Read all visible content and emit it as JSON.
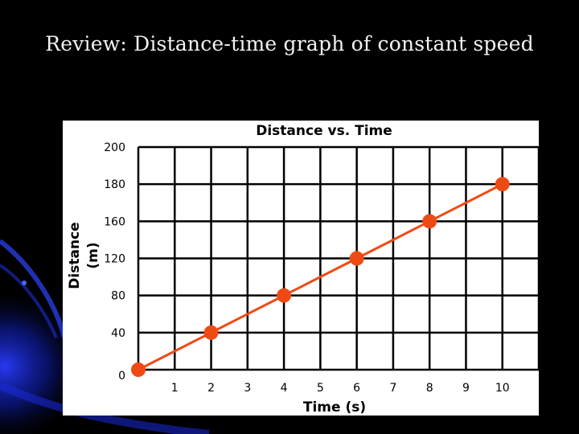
{
  "slide": {
    "title": "Review: Distance-time graph of constant speed",
    "background_color": "#000000",
    "accent_color": "#1a2fd6"
  },
  "chart_data": {
    "type": "line",
    "title": "Distance vs. Time",
    "xlabel": "Time (s)",
    "ylabel_line1": "Distance",
    "ylabel_line2": "(m)",
    "x_ticks": [
      "1",
      "2",
      "3",
      "4",
      "5",
      "6",
      "7",
      "8",
      "9",
      "10"
    ],
    "y_ticks": [
      "0",
      "40",
      "80",
      "120",
      "160",
      "180",
      "200"
    ],
    "grid": true,
    "xlim": [
      0,
      11
    ],
    "series": [
      {
        "color": "#f04a14",
        "marker": "circle",
        "points": [
          {
            "x": 0,
            "y": 0
          },
          {
            "x": 2,
            "y": 40
          },
          {
            "x": 4,
            "y": 80
          },
          {
            "x": 6,
            "y": 120
          },
          {
            "x": 8,
            "y": 160
          },
          {
            "x": 10,
            "y": 180
          }
        ]
      }
    ]
  }
}
